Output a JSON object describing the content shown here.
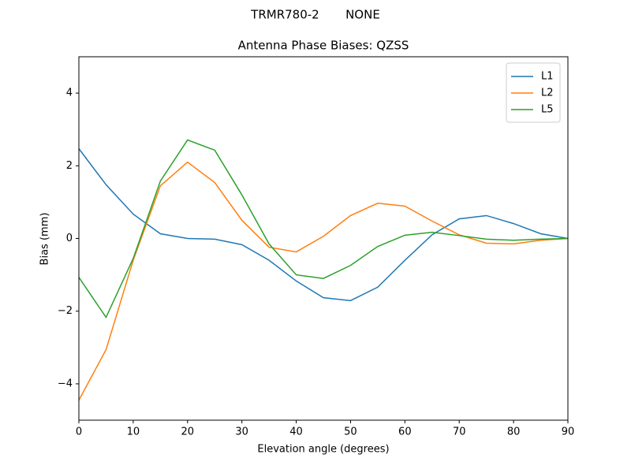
{
  "chart_data": {
    "type": "line",
    "suptitle": "TRMR780-2       NONE",
    "title": "Antenna Phase Biases: QZSS",
    "xlabel": "Elevation angle (degrees)",
    "ylabel": "Bias (mm)",
    "x": [
      0,
      5,
      10,
      15,
      20,
      25,
      30,
      35,
      40,
      45,
      50,
      55,
      60,
      65,
      70,
      75,
      80,
      85,
      90
    ],
    "series": [
      {
        "name": "L1",
        "color": "#1f77b4",
        "values": [
          2.47,
          1.48,
          0.67,
          0.13,
          0.0,
          -0.02,
          -0.17,
          -0.6,
          -1.17,
          -1.63,
          -1.71,
          -1.34,
          -0.6,
          0.1,
          0.54,
          0.63,
          0.41,
          0.13,
          0.0
        ]
      },
      {
        "name": "L2",
        "color": "#ff7f0e",
        "values": [
          -4.45,
          -3.06,
          -0.6,
          1.45,
          2.1,
          1.54,
          0.5,
          -0.24,
          -0.37,
          0.06,
          0.63,
          0.97,
          0.89,
          0.48,
          0.1,
          -0.13,
          -0.15,
          -0.05,
          0.0
        ]
      },
      {
        "name": "L5",
        "color": "#2ca02c",
        "values": [
          -1.07,
          -2.17,
          -0.55,
          1.58,
          2.71,
          2.43,
          1.2,
          -0.15,
          -1.0,
          -1.1,
          -0.74,
          -0.22,
          0.09,
          0.17,
          0.08,
          -0.02,
          -0.05,
          -0.02,
          0.0
        ]
      }
    ],
    "xlim": [
      0,
      90
    ],
    "xticks": [
      0,
      10,
      20,
      30,
      40,
      50,
      60,
      70,
      80,
      90
    ],
    "ylim": [
      -5,
      5
    ],
    "yticks": [
      {
        "value": -4,
        "label": "−4"
      },
      {
        "value": -2,
        "label": "−2"
      },
      0,
      2,
      4
    ],
    "legend": "upper right",
    "grid": false
  }
}
